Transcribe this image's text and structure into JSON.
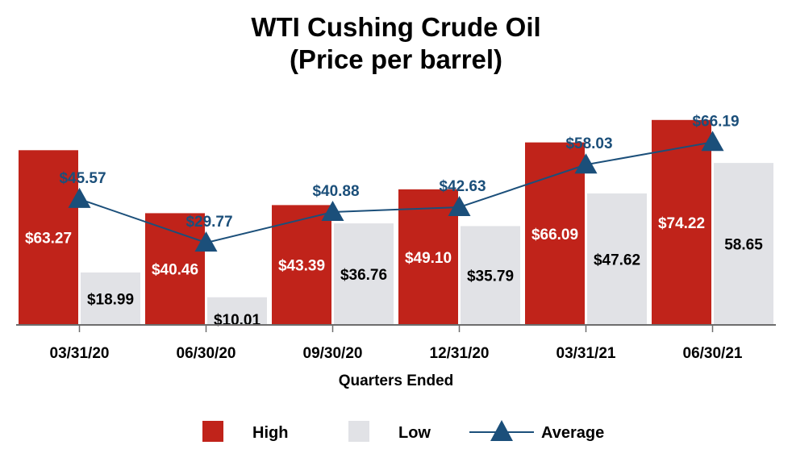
{
  "title_line1": "WTI Cushing Crude Oil",
  "title_line2": "(Price per barrel)",
  "colors": {
    "high": "#c0231a",
    "low": "#e1e2e6",
    "average": "#1b4f7a",
    "axis": "#6d6d6d"
  },
  "chart_data": {
    "type": "bar",
    "title": "WTI Cushing Crude Oil (Price per barrel)",
    "xlabel": "Quarters Ended",
    "ylabel": "",
    "ylim": [
      0,
      80
    ],
    "categories": [
      "03/31/20",
      "06/30/20",
      "09/30/20",
      "12/31/20",
      "03/31/21",
      "06/30/21"
    ],
    "series": [
      {
        "name": "High",
        "type": "bar",
        "values": [
          63.27,
          40.46,
          43.39,
          49.1,
          66.09,
          74.22
        ],
        "labels": [
          "$63.27",
          "$40.46",
          "$43.39",
          "$49.10",
          "$66.09",
          "$74.22"
        ]
      },
      {
        "name": "Low",
        "type": "bar",
        "values": [
          18.99,
          10.01,
          36.76,
          35.79,
          47.62,
          58.65
        ],
        "labels": [
          "$18.99",
          "$10.01",
          "$36.76",
          "$35.79",
          "$47.62",
          "58.65"
        ]
      },
      {
        "name": "Average",
        "type": "line",
        "values": [
          45.57,
          29.77,
          40.88,
          42.63,
          58.03,
          66.19
        ],
        "labels": [
          "$45.57",
          "$29.77",
          "$40.88",
          "$42.63",
          "$58.03",
          "$66.19"
        ]
      }
    ],
    "legend": [
      "High",
      "Low",
      "Average"
    ],
    "legend_position": "bottom"
  }
}
